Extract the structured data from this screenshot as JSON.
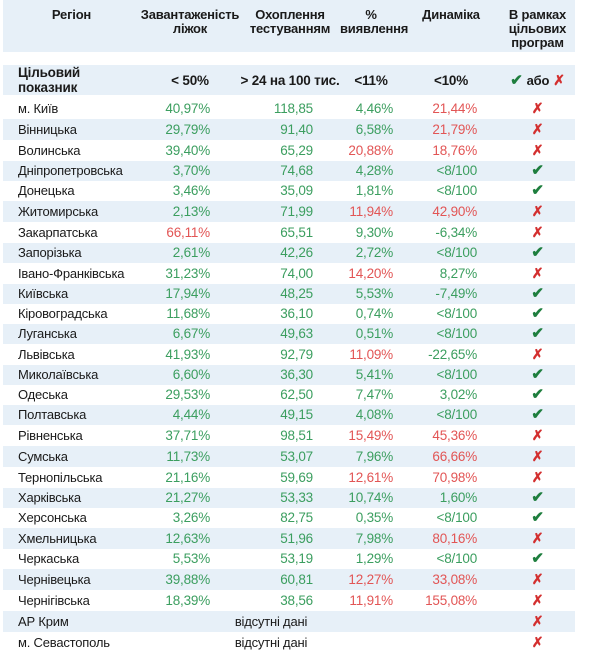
{
  "colors": {
    "row_stripe": "#e7f0f8",
    "good_value_green": "#3b9e5f",
    "bad_value_red": "#e25555",
    "check_green": "#1e7e3e",
    "cross_red": "#d32f2f",
    "text_ink": "#1a1a1a"
  },
  "icons": {
    "check_glyph": "✔",
    "cross_glyph": "✗"
  },
  "table": {
    "columns": [
      {
        "label": "Регіон"
      },
      {
        "label": "Завантаженість\nліжок"
      },
      {
        "label": "Охоплення\nтестуванням"
      },
      {
        "label": "%\nвиявлення"
      },
      {
        "label": "Динаміка"
      },
      {
        "label": "В рамках\nцільових\nпрограм"
      }
    ],
    "target_row": {
      "label": "Цільовий показник",
      "values": [
        "< 50%",
        "> 24 на 100 тис.",
        "<11%",
        "<10%"
      ],
      "or_label": "або"
    },
    "no_data_text": "відсутні дані",
    "rows": [
      {
        "region": "м. Київ",
        "cells": [
          {
            "t": "40,97%",
            "c": "g"
          },
          {
            "t": "118,85",
            "c": "g"
          },
          {
            "t": "4,46%",
            "c": "g"
          },
          {
            "t": "21,44%",
            "c": "r"
          }
        ],
        "program": "cross"
      },
      {
        "region": "Вінницька",
        "cells": [
          {
            "t": "29,79%",
            "c": "g"
          },
          {
            "t": "91,40",
            "c": "g"
          },
          {
            "t": "6,58%",
            "c": "g"
          },
          {
            "t": "21,79%",
            "c": "r"
          }
        ],
        "program": "cross"
      },
      {
        "region": "Волинська",
        "cells": [
          {
            "t": "39,40%",
            "c": "g"
          },
          {
            "t": "65,29",
            "c": "g"
          },
          {
            "t": "20,88%",
            "c": "r"
          },
          {
            "t": "18,76%",
            "c": "r"
          }
        ],
        "program": "cross"
      },
      {
        "region": "Дніпропетровська",
        "cells": [
          {
            "t": "3,70%",
            "c": "g"
          },
          {
            "t": "74,68",
            "c": "g"
          },
          {
            "t": "4,28%",
            "c": "g"
          },
          {
            "t": "<8/100",
            "c": "g"
          }
        ],
        "program": "check"
      },
      {
        "region": "Донецька",
        "cells": [
          {
            "t": "3,46%",
            "c": "g"
          },
          {
            "t": "35,09",
            "c": "g"
          },
          {
            "t": "1,81%",
            "c": "g"
          },
          {
            "t": "<8/100",
            "c": "g"
          }
        ],
        "program": "check"
      },
      {
        "region": "Житомирська",
        "cells": [
          {
            "t": "2,13%",
            "c": "g"
          },
          {
            "t": "71,99",
            "c": "g"
          },
          {
            "t": "11,94%",
            "c": "r"
          },
          {
            "t": "42,90%",
            "c": "r"
          }
        ],
        "program": "cross"
      },
      {
        "region": "Закарпатська",
        "cells": [
          {
            "t": "66,11%",
            "c": "r"
          },
          {
            "t": "65,51",
            "c": "g"
          },
          {
            "t": "9,30%",
            "c": "g"
          },
          {
            "t": "-6,34%",
            "c": "g"
          }
        ],
        "program": "cross"
      },
      {
        "region": "Запорізька",
        "cells": [
          {
            "t": "2,61%",
            "c": "g"
          },
          {
            "t": "42,26",
            "c": "g"
          },
          {
            "t": "2,72%",
            "c": "g"
          },
          {
            "t": "<8/100",
            "c": "g"
          }
        ],
        "program": "check"
      },
      {
        "region": "Івано-Франківська",
        "cells": [
          {
            "t": "31,23%",
            "c": "g"
          },
          {
            "t": "74,00",
            "c": "g"
          },
          {
            "t": "14,20%",
            "c": "r"
          },
          {
            "t": "8,27%",
            "c": "g"
          }
        ],
        "program": "cross"
      },
      {
        "region": "Київська",
        "cells": [
          {
            "t": "17,94%",
            "c": "g"
          },
          {
            "t": "48,25",
            "c": "g"
          },
          {
            "t": "5,53%",
            "c": "g"
          },
          {
            "t": "-7,49%",
            "c": "g"
          }
        ],
        "program": "check"
      },
      {
        "region": "Кіровоградська",
        "cells": [
          {
            "t": "11,68%",
            "c": "g"
          },
          {
            "t": "36,10",
            "c": "g"
          },
          {
            "t": "0,74%",
            "c": "g"
          },
          {
            "t": "<8/100",
            "c": "g"
          }
        ],
        "program": "check"
      },
      {
        "region": "Луганська",
        "cells": [
          {
            "t": "6,67%",
            "c": "g"
          },
          {
            "t": "49,63",
            "c": "g"
          },
          {
            "t": "0,51%",
            "c": "g"
          },
          {
            "t": "<8/100",
            "c": "g"
          }
        ],
        "program": "check"
      },
      {
        "region": "Львівська",
        "cells": [
          {
            "t": "41,93%",
            "c": "g"
          },
          {
            "t": "92,79",
            "c": "g"
          },
          {
            "t": "11,09%",
            "c": "r"
          },
          {
            "t": "-22,65%",
            "c": "g"
          }
        ],
        "program": "cross"
      },
      {
        "region": "Миколаївська",
        "cells": [
          {
            "t": "6,60%",
            "c": "g"
          },
          {
            "t": "36,30",
            "c": "g"
          },
          {
            "t": "5,41%",
            "c": "g"
          },
          {
            "t": "<8/100",
            "c": "g"
          }
        ],
        "program": "check"
      },
      {
        "region": "Одеська",
        "cells": [
          {
            "t": "29,53%",
            "c": "g"
          },
          {
            "t": "62,50",
            "c": "g"
          },
          {
            "t": "7,47%",
            "c": "g"
          },
          {
            "t": "3,02%",
            "c": "g"
          }
        ],
        "program": "check"
      },
      {
        "region": "Полтавська",
        "cells": [
          {
            "t": "4,44%",
            "c": "g"
          },
          {
            "t": "49,15",
            "c": "g"
          },
          {
            "t": "4,08%",
            "c": "g"
          },
          {
            "t": "<8/100",
            "c": "g"
          }
        ],
        "program": "check"
      },
      {
        "region": "Рівненська",
        "cells": [
          {
            "t": "37,71%",
            "c": "g"
          },
          {
            "t": "98,51",
            "c": "g"
          },
          {
            "t": "15,49%",
            "c": "r"
          },
          {
            "t": "45,36%",
            "c": "r"
          }
        ],
        "program": "cross"
      },
      {
        "region": "Сумська",
        "cells": [
          {
            "t": "11,73%",
            "c": "g"
          },
          {
            "t": "53,07",
            "c": "g"
          },
          {
            "t": "7,96%",
            "c": "g"
          },
          {
            "t": "66,66%",
            "c": "r"
          }
        ],
        "program": "cross"
      },
      {
        "region": "Тернопільська",
        "cells": [
          {
            "t": "21,16%",
            "c": "g"
          },
          {
            "t": "59,69",
            "c": "g"
          },
          {
            "t": "12,61%",
            "c": "r"
          },
          {
            "t": "70,98%",
            "c": "r"
          }
        ],
        "program": "cross"
      },
      {
        "region": "Харківська",
        "cells": [
          {
            "t": "21,27%",
            "c": "g"
          },
          {
            "t": "53,33",
            "c": "g"
          },
          {
            "t": "10,74%",
            "c": "g"
          },
          {
            "t": "1,60%",
            "c": "g"
          }
        ],
        "program": "check"
      },
      {
        "region": "Херсонська",
        "cells": [
          {
            "t": "3,26%",
            "c": "g"
          },
          {
            "t": "82,75",
            "c": "g"
          },
          {
            "t": "0,35%",
            "c": "g"
          },
          {
            "t": "<8/100",
            "c": "g"
          }
        ],
        "program": "check"
      },
      {
        "region": "Хмельницька",
        "cells": [
          {
            "t": "12,63%",
            "c": "g"
          },
          {
            "t": "51,96",
            "c": "g"
          },
          {
            "t": "7,98%",
            "c": "g"
          },
          {
            "t": "80,16%",
            "c": "r"
          }
        ],
        "program": "cross"
      },
      {
        "region": "Черкаська",
        "cells": [
          {
            "t": "5,53%",
            "c": "g"
          },
          {
            "t": "53,19",
            "c": "g"
          },
          {
            "t": "1,29%",
            "c": "g"
          },
          {
            "t": "<8/100",
            "c": "g"
          }
        ],
        "program": "check"
      },
      {
        "region": "Чернівецька",
        "cells": [
          {
            "t": "39,88%",
            "c": "g"
          },
          {
            "t": "60,81",
            "c": "g"
          },
          {
            "t": "12,27%",
            "c": "r"
          },
          {
            "t": "33,08%",
            "c": "r"
          }
        ],
        "program": "cross"
      },
      {
        "region": "Чернігівська",
        "cells": [
          {
            "t": "18,39%",
            "c": "g"
          },
          {
            "t": "38,56",
            "c": "g"
          },
          {
            "t": "11,91%",
            "c": "r"
          },
          {
            "t": "155,08%",
            "c": "r"
          }
        ],
        "program": "cross"
      },
      {
        "region": "АР Крим",
        "no_data": true,
        "program": "cross"
      },
      {
        "region": "м. Севастополь",
        "no_data": true,
        "program": "cross"
      }
    ]
  }
}
